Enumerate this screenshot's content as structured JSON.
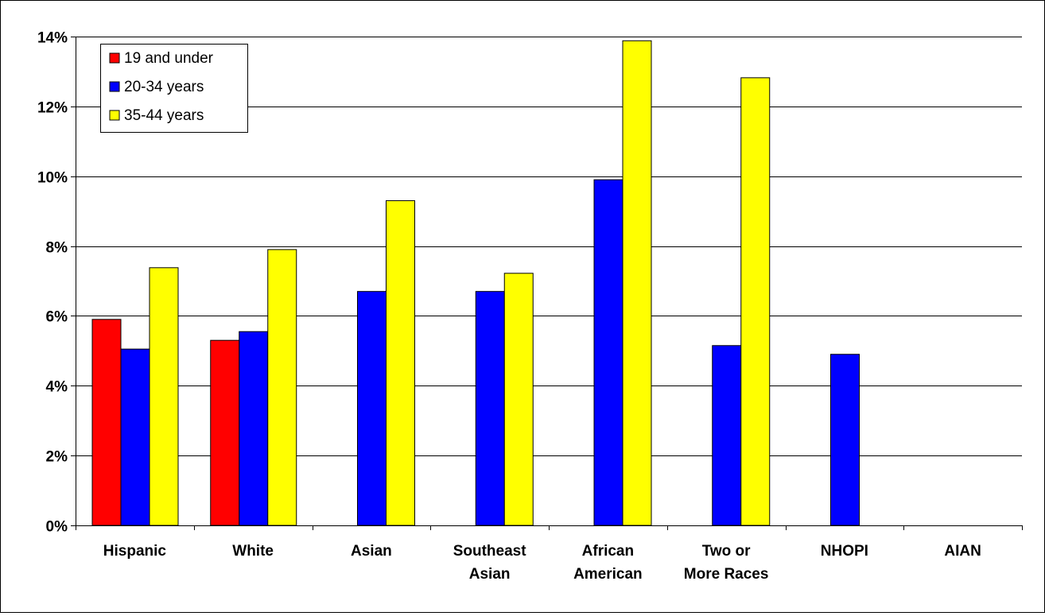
{
  "chart_data": {
    "type": "bar",
    "title": "",
    "xlabel": "",
    "ylabel": "",
    "categories": [
      [
        "Hispanic"
      ],
      [
        "White"
      ],
      [
        "Asian"
      ],
      [
        "Southeast",
        "Asian"
      ],
      [
        "African",
        "American"
      ],
      [
        "Two or",
        "More Races"
      ],
      [
        "NHOPI"
      ],
      [
        "AIAN"
      ]
    ],
    "series": [
      {
        "name": "19 and under",
        "color": "#ff0000",
        "values": [
          5.9,
          5.3,
          null,
          null,
          null,
          null,
          null,
          null
        ]
      },
      {
        "name": "20-34 years",
        "color": "#0000ff",
        "values": [
          5.05,
          5.55,
          6.7,
          6.7,
          9.9,
          5.15,
          4.9,
          null
        ]
      },
      {
        "name": "35-44 years",
        "color": "#ffff00",
        "values": [
          7.38,
          7.9,
          9.3,
          7.22,
          13.88,
          12.82,
          null,
          null
        ]
      }
    ],
    "ylim": [
      0,
      14
    ],
    "yticks": [
      0,
      2,
      4,
      6,
      8,
      10,
      12,
      14
    ],
    "ytick_labels": [
      "0%",
      "2%",
      "4%",
      "6%",
      "8%",
      "10%",
      "12%",
      "14%"
    ],
    "grid": true,
    "legend_position": "top-left"
  }
}
